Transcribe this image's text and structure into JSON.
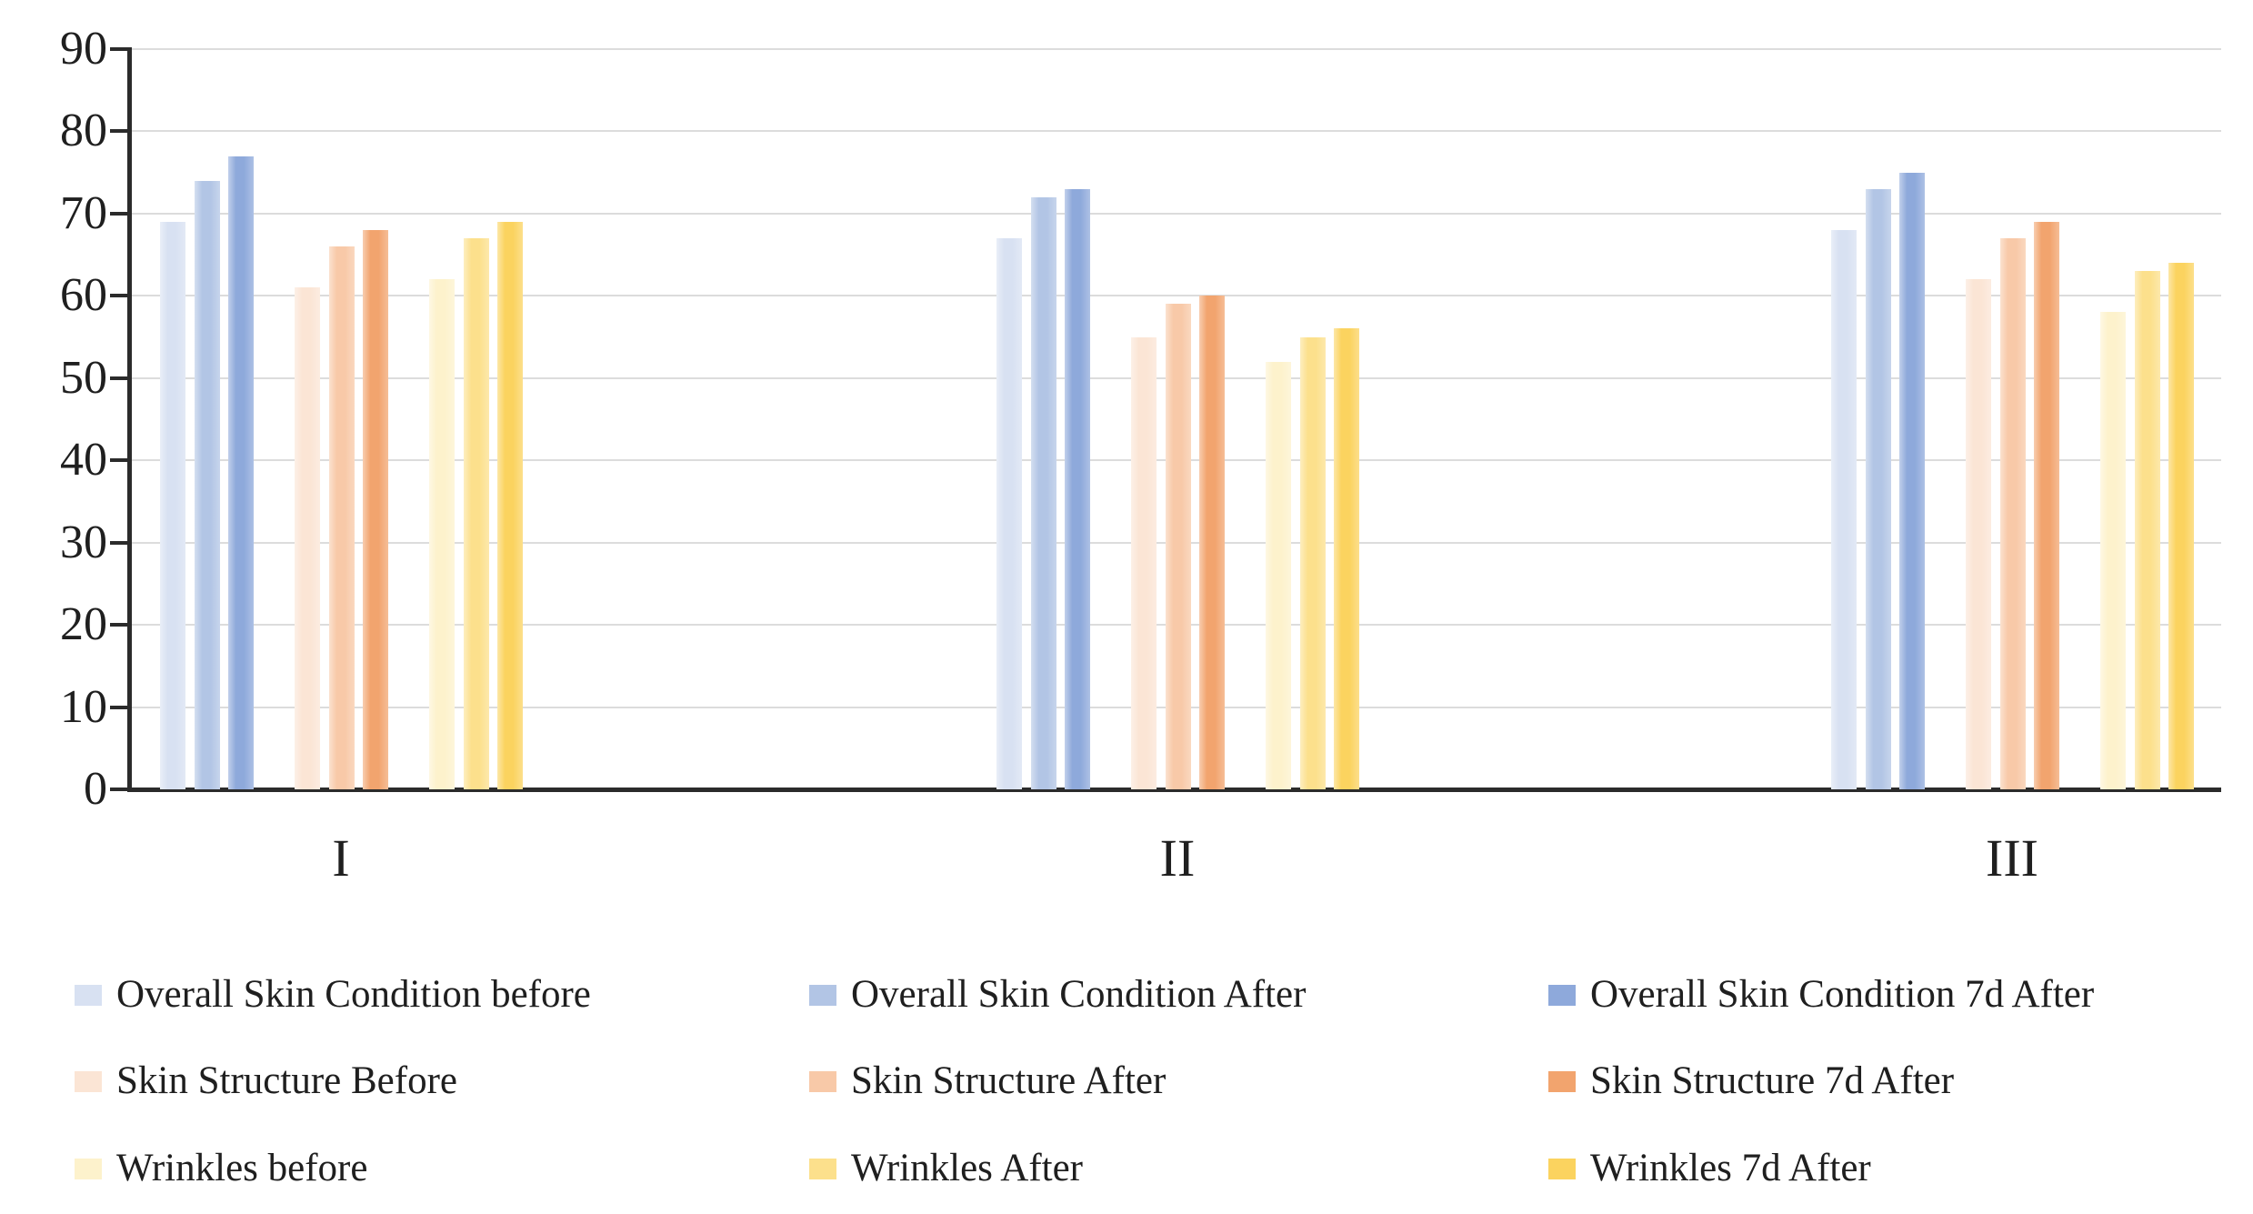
{
  "chart_data": {
    "type": "bar",
    "title": "",
    "categories": [
      "I",
      "II",
      "III"
    ],
    "series": [
      {
        "name": "Overall Skin Condition before",
        "color": "#d8e1f2",
        "values": [
          69,
          67,
          68
        ]
      },
      {
        "name": "Overall Skin Condition After",
        "color": "#b2c5e5",
        "values": [
          74,
          72,
          73
        ]
      },
      {
        "name": "Overall Skin Condition 7d After",
        "color": "#8ea9db",
        "values": [
          77,
          73,
          75
        ]
      },
      {
        "name": "Skin Structure Before",
        "color": "#fbe5d5",
        "values": [
          61,
          55,
          62
        ]
      },
      {
        "name": "Skin Structure After",
        "color": "#f8c9a8",
        "values": [
          66,
          59,
          67
        ]
      },
      {
        "name": "Skin Structure 7d After",
        "color": "#f2a46e",
        "values": [
          68,
          60,
          69
        ]
      },
      {
        "name": "Wrinkles before",
        "color": "#fdf2cc",
        "values": [
          62,
          52,
          58
        ]
      },
      {
        "name": "Wrinkles After",
        "color": "#fce08c",
        "values": [
          67,
          55,
          63
        ]
      },
      {
        "name": "Wrinkles 7d After",
        "color": "#fbd35f",
        "values": [
          69,
          56,
          64
        ]
      }
    ],
    "y_ticks": [
      0,
      10,
      20,
      30,
      40,
      50,
      60,
      70,
      80,
      90
    ],
    "ylim": [
      0,
      90
    ],
    "grid": true,
    "legend_position": "bottom",
    "legend_grid": {
      "rows": 3,
      "cols": 3
    }
  }
}
